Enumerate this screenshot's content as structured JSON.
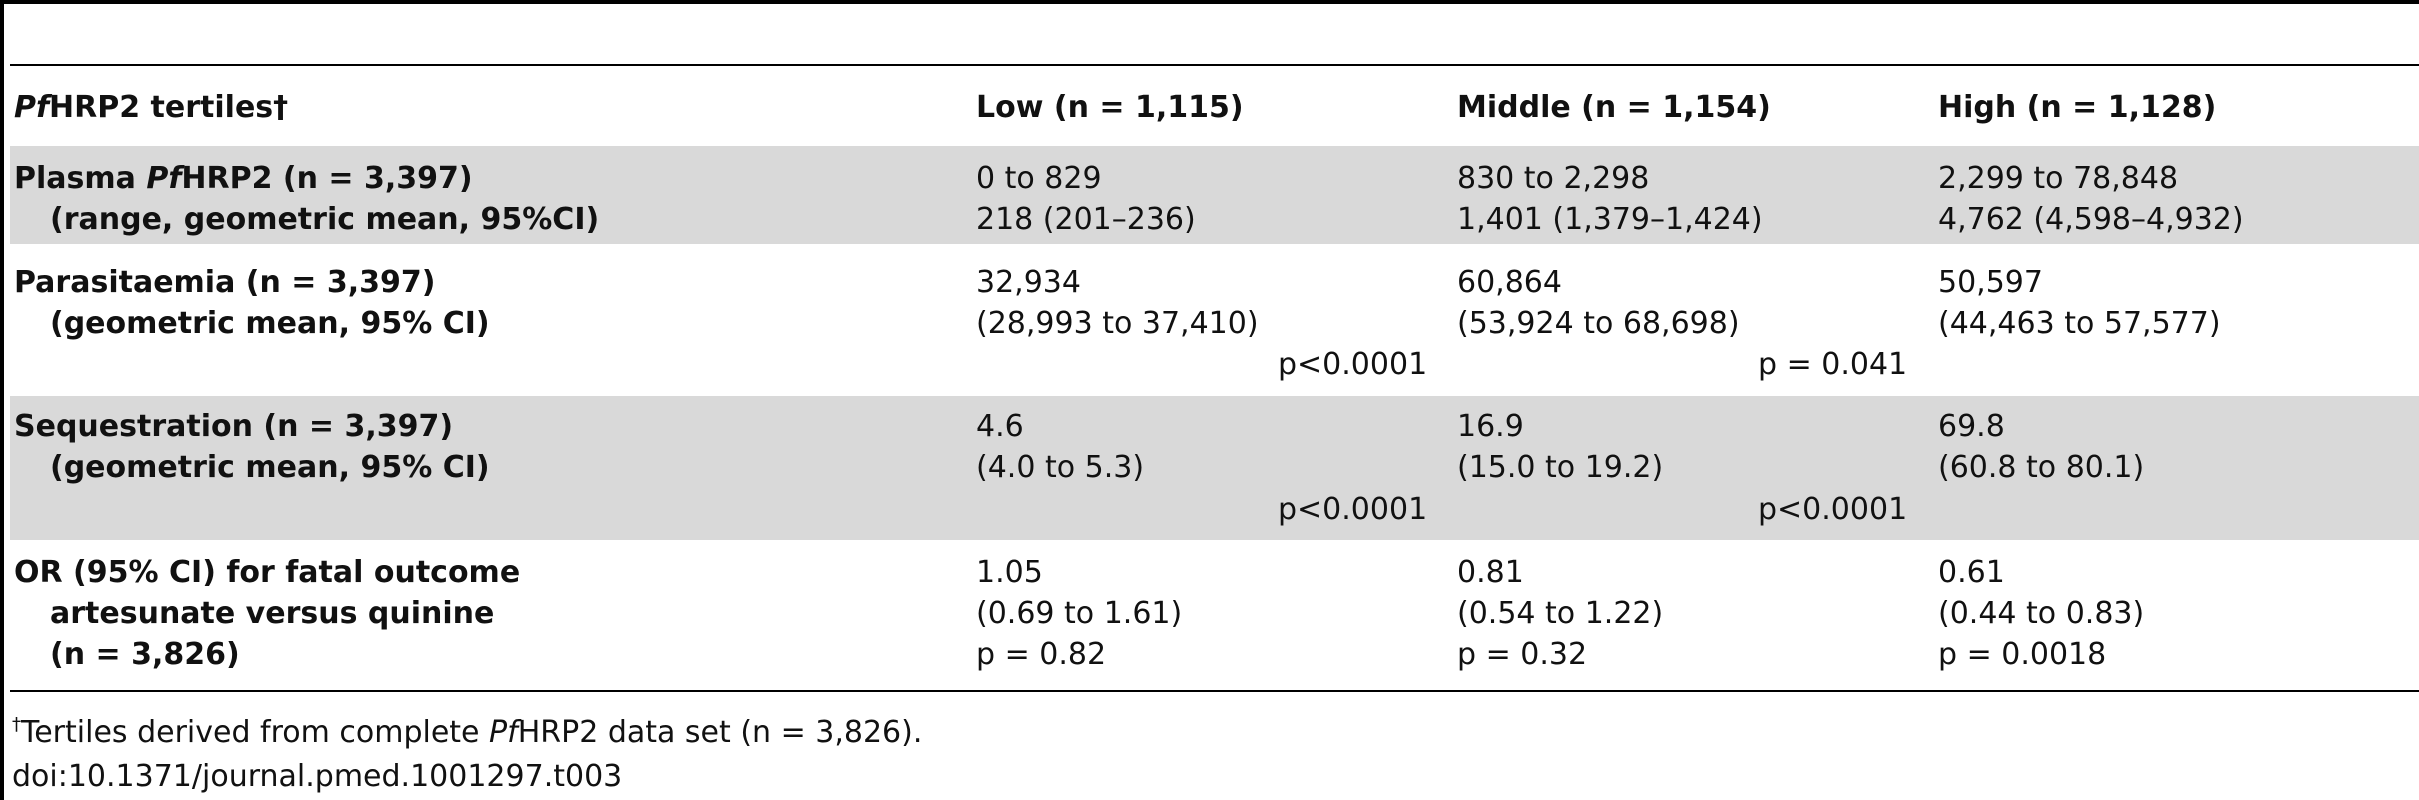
{
  "header": {
    "col0": {
      "italic": "Pf",
      "rest": "HRP2 tertiles†"
    },
    "col1": "Low (n = 1,115)",
    "col2": "Middle (n = 1,154)",
    "col3": "High (n = 1,128)"
  },
  "rows": [
    {
      "label": [
        {
          "pre": "Plasma ",
          "italic": "Pf",
          "post": "HRP2 (n = 3,397)"
        },
        "(range, geometric mean, 95%CI)"
      ],
      "low": [
        "0 to 829",
        "218 (201–236)"
      ],
      "middle": [
        "830 to 2,298",
        "1,401 (1,379–1,424)"
      ],
      "high": [
        "2,299 to 78,848",
        "4,762 (4,598–4,932)"
      ]
    },
    {
      "label": [
        "Parasitaemia (n = 3,397)",
        "(geometric mean, 95% CI)"
      ],
      "low": [
        "32,934",
        "(28,993 to 37,410)"
      ],
      "middle": [
        "60,864",
        "(53,924 to 68,698)"
      ],
      "high": [
        "50,597",
        "(44,463 to 57,577)"
      ],
      "p_low_mid": "p<0.0001",
      "p_mid_high": "p = 0.041"
    },
    {
      "label": [
        "Sequestration (n = 3,397)",
        "(geometric mean, 95% CI)"
      ],
      "low": [
        "4.6",
        "(4.0 to 5.3)"
      ],
      "middle": [
        "16.9",
        "(15.0 to 19.2)"
      ],
      "high": [
        "69.8",
        "(60.8 to 80.1)"
      ],
      "p_low_mid": "p<0.0001",
      "p_mid_high": "p<0.0001"
    },
    {
      "label": [
        "OR (95% CI) for fatal outcome",
        "artesunate versus quinine",
        "(n = 3,826)"
      ],
      "low": [
        "1.05",
        "(0.69 to 1.61)",
        "p = 0.82"
      ],
      "middle": [
        "0.81",
        "(0.54 to 1.22)",
        "p = 0.32"
      ],
      "high": [
        "0.61",
        "(0.44 to 0.83)",
        "p = 0.0018"
      ]
    }
  ],
  "footnote": {
    "mark": "†",
    "pre": "Tertiles derived from complete ",
    "italic": "Pf",
    "post": "HRP2 data set (n = 3,826)."
  },
  "doi": "doi:10.1371/journal.pmed.1001297.t003"
}
